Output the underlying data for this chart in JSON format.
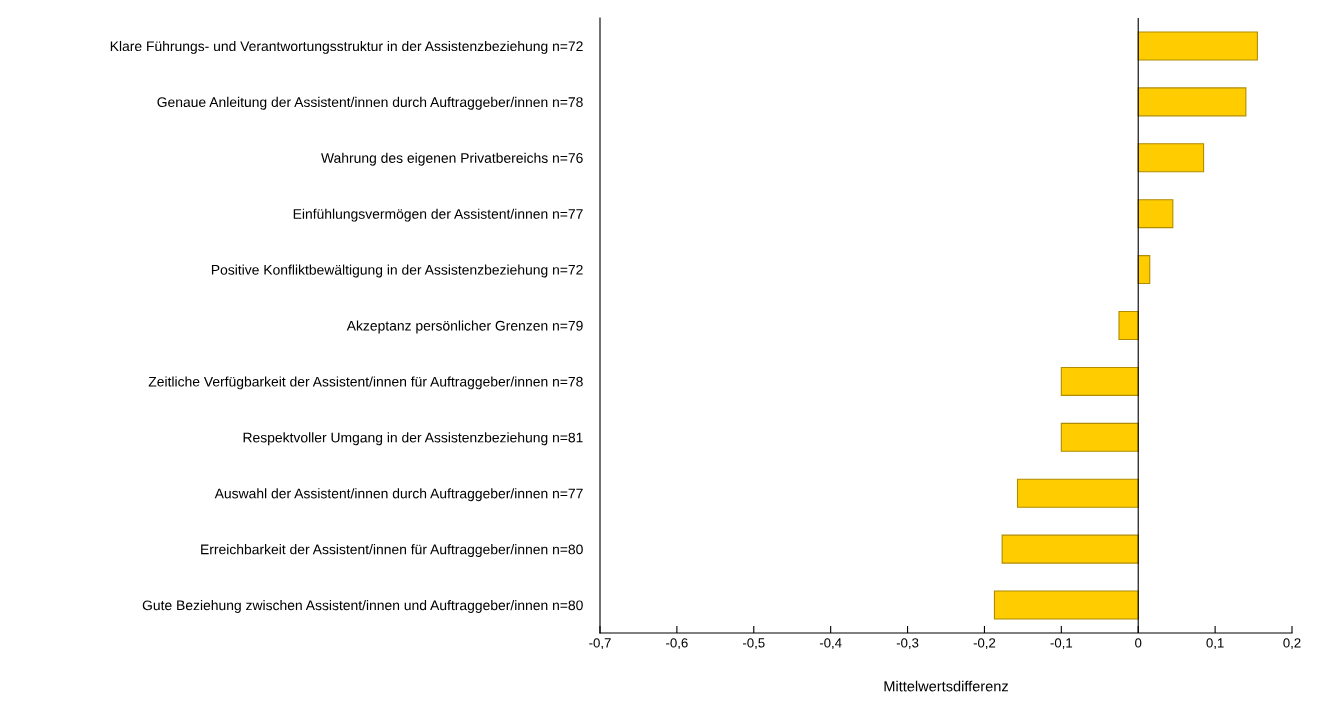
{
  "chart_data": {
    "type": "bar",
    "orientation": "horizontal",
    "xlabel": "Mittelwertsdifferenz",
    "categories": [
      "Klare Führungs- und Verantwortungsstruktur in der Assistenzbeziehung n=72",
      "Genaue Anleitung der Assistent/innen durch Auftraggeber/innen n=78",
      "Wahrung des eigenen Privatbereichs n=76",
      "Einfühlungsvermögen der Assistent/innen n=77",
      "Positive Konfliktbewältigung in der Assistenzbeziehung n=72",
      "Akzeptanz persönlicher Grenzen n=79",
      "Zeitliche Verfügbarkeit der Assistent/innen für Auftraggeber/innen n=78",
      "Respektvoller Umgang in der Assistenzbeziehung n=81",
      "Auswahl der Assistent/innen durch Auftraggeber/innen n=77",
      "Erreichbarkeit der Assistent/innen für Auftraggeber/innen n=80",
      "Gute Beziehung zwischen Assistent/innen und Auftraggeber/innen n=80"
    ],
    "values": [
      0.155,
      0.14,
      0.085,
      0.045,
      0.015,
      -0.025,
      -0.1,
      -0.1,
      -0.157,
      -0.177,
      -0.187
    ],
    "color": "#ffcc00",
    "xlim": [
      -0.7,
      0.2
    ],
    "xticks": [
      {
        "value": -0.7,
        "label": "-0,7"
      },
      {
        "value": -0.6,
        "label": "-0,6"
      },
      {
        "value": -0.5,
        "label": "-0,5"
      },
      {
        "value": -0.4,
        "label": "-0,4"
      },
      {
        "value": -0.3,
        "label": "-0,3"
      },
      {
        "value": -0.2,
        "label": "-0,2"
      },
      {
        "value": -0.1,
        "label": "-0,1"
      },
      {
        "value": 0,
        "label": "0"
      },
      {
        "value": 0.1,
        "label": "0,1"
      },
      {
        "value": 0.2,
        "label": "0,2"
      }
    ],
    "ref_lines": [
      {
        "axis": "x",
        "value": 0,
        "color": "#000000"
      }
    ],
    "grid": false
  }
}
